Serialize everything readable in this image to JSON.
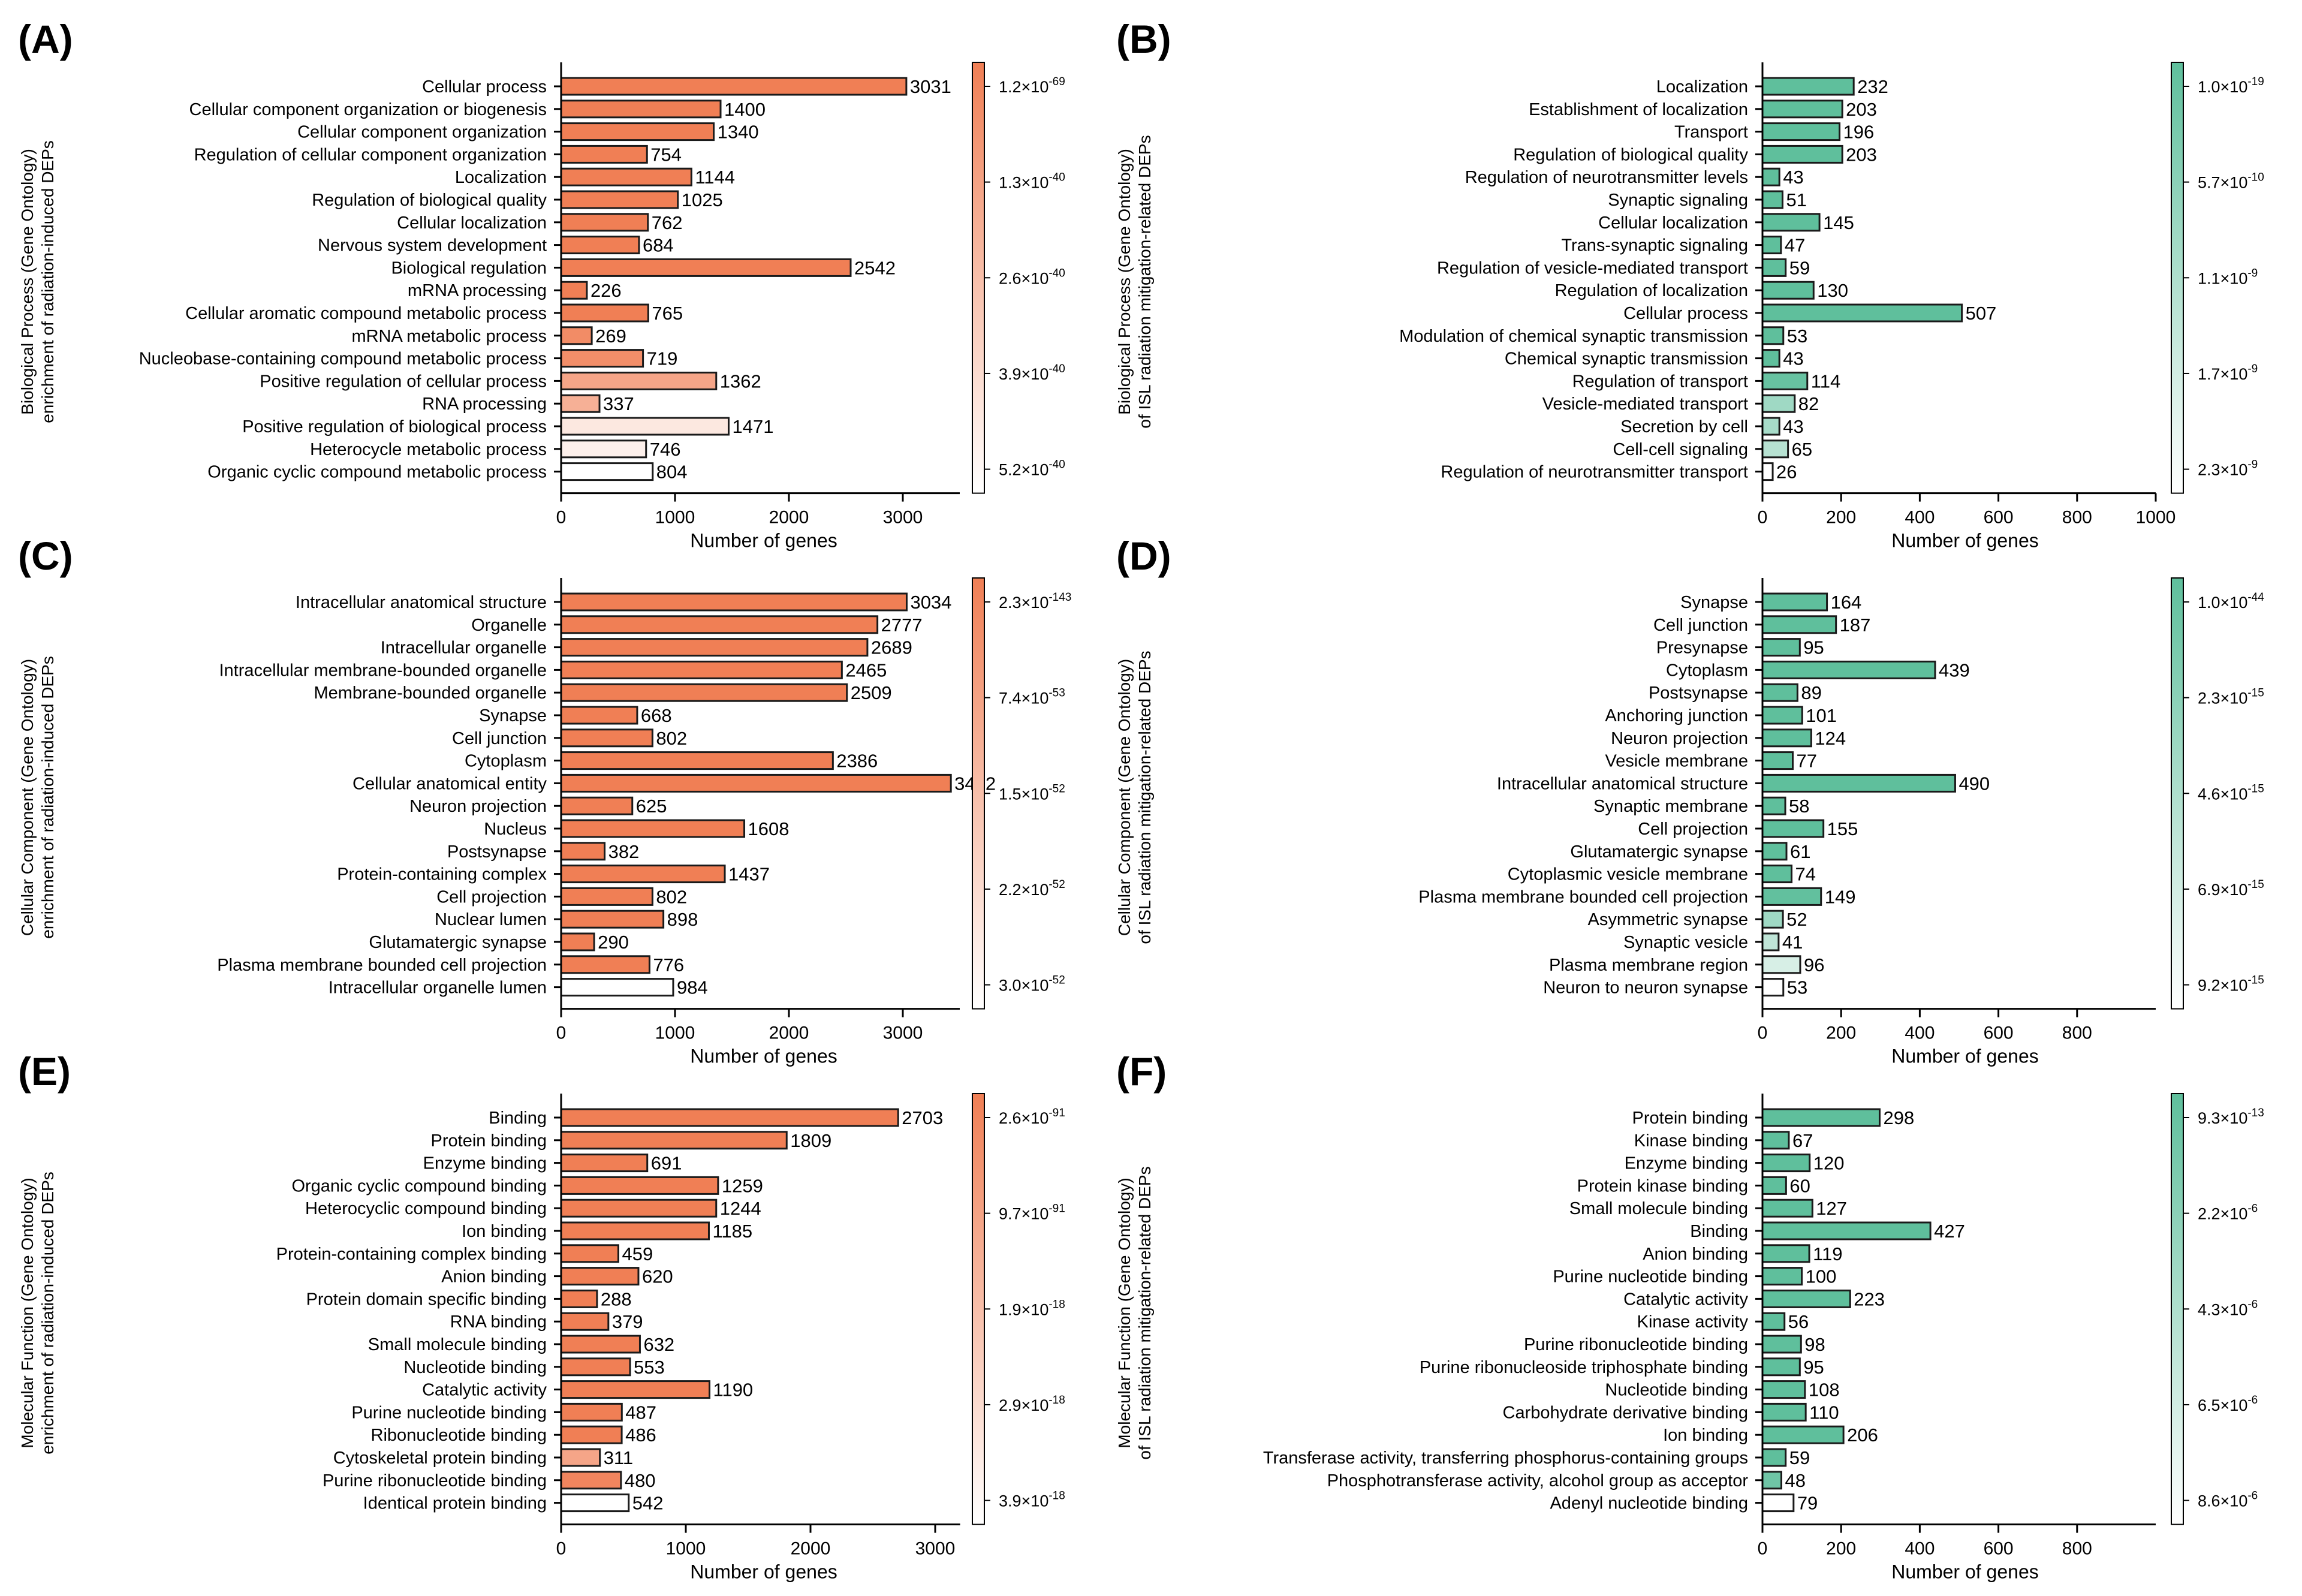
{
  "figure": {
    "x_axis_label": "Number of genes"
  },
  "colors": {
    "orange": "#f07f55",
    "green": "#5fbf9c",
    "light_end": "#ffffff",
    "stroke": "#1a1a1a"
  },
  "chart_data": [
    {
      "panel": "(A)",
      "type": "bar",
      "orientation": "horizontal",
      "palette": "orange",
      "ylabel_lines": [
        "Biological Process (Gene Ontology)",
        "enrichment of radiation-induced DEPs"
      ],
      "xlabel": "Number of genes",
      "xlim": [
        0,
        3500
      ],
      "xticks": [
        0,
        1000,
        2000,
        3000
      ],
      "categories": [
        "Cellular process",
        "Cellular component organization or biogenesis",
        "Cellular component organization",
        "Regulation of cellular component organization",
        "Localization",
        "Regulation of biological quality",
        "Cellular localization",
        "Nervous system development",
        "Biological regulation",
        "mRNA processing",
        "Cellular aromatic compound metabolic process",
        "mRNA metabolic process",
        "Nucleobase-containing compound metabolic process",
        "Positive regulation of cellular process",
        "RNA processing",
        "Positive regulation of biological process",
        "Heterocycle metabolic process",
        "Organic cyclic compound metabolic process"
      ],
      "values": [
        3031,
        1400,
        1340,
        754,
        1144,
        1025,
        762,
        684,
        2542,
        226,
        765,
        269,
        719,
        1362,
        337,
        1471,
        746,
        804
      ],
      "color_levels": [
        0,
        0,
        0,
        0,
        0,
        0,
        0,
        0,
        0,
        0,
        0,
        0.1,
        0.12,
        0.3,
        0.38,
        0.82,
        0.88,
        1.0
      ],
      "colorbar_labels": [
        "1.2×10<sup>-69</sup>",
        "1.3×10<sup>-40</sup>",
        "2.6×10<sup>-40</sup>",
        "3.9×10<sup>-40</sup>",
        "5.2×10<sup>-40</sup>"
      ]
    },
    {
      "panel": "(B)",
      "type": "bar",
      "orientation": "horizontal",
      "palette": "green",
      "ylabel_lines": [
        "Biological Process (Gene Ontology)",
        "of ISL radiation mitigation-related DEPs"
      ],
      "xlabel": "Number of genes",
      "xlim": [
        0,
        1000
      ],
      "xticks": [
        0,
        200,
        400,
        600,
        800,
        1000
      ],
      "categories": [
        "Localization",
        "Establishment of localization",
        "Transport",
        "Regulation of biological quality",
        "Regulation of neurotransmitter levels",
        "Synaptic signaling",
        "Cellular localization",
        "Trans-synaptic signaling",
        "Regulation of vesicle-mediated transport",
        "Regulation of localization",
        "Cellular process",
        "Modulation of chemical synaptic transmission",
        "Chemical synaptic transmission",
        "Regulation of transport",
        "Vesicle-mediated transport",
        "Secretion by cell",
        "Cell-cell signaling",
        "Regulation of neurotransmitter transport"
      ],
      "values": [
        232,
        203,
        196,
        203,
        43,
        51,
        145,
        47,
        59,
        130,
        507,
        53,
        43,
        114,
        82,
        43,
        65,
        26
      ],
      "color_levels": [
        0,
        0,
        0,
        0,
        0,
        0,
        0,
        0,
        0,
        0,
        0,
        0,
        0,
        0.05,
        0.4,
        0.45,
        0.55,
        1.0
      ],
      "colorbar_labels": [
        "1.0×10<sup>-19</sup>",
        "5.7×10<sup>-10</sup>",
        "1.1×10<sup>-9</sup>",
        "1.7×10<sup>-9</sup>",
        "2.3×10<sup>-9</sup>"
      ]
    },
    {
      "panel": "(C)",
      "type": "bar",
      "orientation": "horizontal",
      "palette": "orange",
      "ylabel_lines": [
        "Cellular Component (Gene Ontology)",
        "enrichment of radiation-induced DEPs"
      ],
      "xlabel": "Number of genes",
      "xlim": [
        0,
        3500
      ],
      "xticks": [
        0,
        1000,
        2000,
        3000
      ],
      "categories": [
        "Intracellular anatomical structure",
        "Organelle",
        "Intracellular organelle",
        "Intracellular membrane-bounded organelle",
        "Membrane-bounded organelle",
        "Synapse",
        "Cell junction",
        "Cytoplasm",
        "Cellular anatomical entity",
        "Neuron projection",
        "Nucleus",
        "Postsynapse",
        "Protein-containing complex",
        "Cell projection",
        "Nuclear lumen",
        "Glutamatergic synapse",
        "Plasma membrane bounded cell projection",
        "Intracellular organelle lumen"
      ],
      "values": [
        3034,
        2777,
        2689,
        2465,
        2509,
        668,
        802,
        2386,
        3422,
        625,
        1608,
        382,
        1437,
        802,
        898,
        290,
        776,
        984
      ],
      "color_levels": [
        0,
        0,
        0,
        0,
        0,
        0,
        0,
        0,
        0,
        0,
        0,
        0,
        0,
        0,
        0,
        0,
        0,
        1.0
      ],
      "colorbar_labels": [
        "2.3×10<sup>-143</sup>",
        "7.4×10<sup>-53</sup>",
        "1.5×10<sup>-52</sup>",
        "2.2×10<sup>-52</sup>",
        "3.0×10<sup>-52</sup>"
      ]
    },
    {
      "panel": "(D)",
      "type": "bar",
      "orientation": "horizontal",
      "palette": "green",
      "ylabel_lines": [
        "Cellular Component (Gene Ontology)",
        "of ISL radiation mitigation-related DEPs"
      ],
      "xlabel": "Number of genes",
      "xlim": [
        0,
        1000
      ],
      "xticks": [
        0,
        200,
        400,
        600,
        800
      ],
      "categories": [
        "Synapse",
        "Cell junction",
        "Presynapse",
        "Cytoplasm",
        "Postsynapse",
        "Anchoring junction",
        "Neuron projection",
        "Vesicle membrane",
        "Intracellular anatomical structure",
        "Synaptic membrane",
        "Cell projection",
        "Glutamatergic synapse",
        "Cytoplasmic vesicle membrane",
        "Plasma membrane bounded cell projection",
        "Asymmetric synapse",
        "Synaptic vesicle",
        "Plasma membrane region",
        "Neuron to neuron synapse"
      ],
      "values": [
        164,
        187,
        95,
        439,
        89,
        101,
        124,
        77,
        490,
        58,
        155,
        61,
        74,
        149,
        52,
        41,
        96,
        53
      ],
      "color_levels": [
        0,
        0,
        0,
        0,
        0,
        0,
        0,
        0,
        0,
        0,
        0,
        0,
        0,
        0.02,
        0.4,
        0.6,
        0.75,
        1.0
      ],
      "colorbar_labels": [
        "1.0×10<sup>-44</sup>",
        "2.3×10<sup>-15</sup>",
        "4.6×10<sup>-15</sup>",
        "6.9×10<sup>-15</sup>",
        "9.2×10<sup>-15</sup>"
      ]
    },
    {
      "panel": "(E)",
      "type": "bar",
      "orientation": "horizontal",
      "palette": "orange",
      "ylabel_lines": [
        "Molecular Function (Gene Ontology)",
        "enrichment of radiation-induced DEPs"
      ],
      "xlabel": "Number of genes",
      "xlim": [
        0,
        3200
      ],
      "xticks": [
        0,
        1000,
        2000,
        3000
      ],
      "categories": [
        "Binding",
        "Protein binding",
        "Enzyme binding",
        "Organic cyclic compound binding",
        "Heterocyclic compound binding",
        "Ion binding",
        "Protein-containing complex binding",
        "Anion binding",
        "Protein domain specific binding",
        "RNA binding",
        "Small molecule binding",
        "Nucleotide binding",
        "Catalytic activity",
        "Purine nucleotide binding",
        "Ribonucleotide binding",
        "Cytoskeletal protein binding",
        "Purine ribonucleotide binding",
        "Identical protein binding"
      ],
      "values": [
        2703,
        1809,
        691,
        1259,
        1244,
        1185,
        459,
        620,
        288,
        379,
        632,
        553,
        1190,
        487,
        486,
        311,
        480,
        542
      ],
      "color_levels": [
        0,
        0,
        0,
        0,
        0,
        0,
        0,
        0,
        0,
        0,
        0,
        0,
        0,
        0,
        0,
        0.3,
        0.05,
        1.0
      ],
      "colorbar_labels": [
        "2.6×10<sup>-91</sup>",
        "9.7×10<sup>-91</sup>",
        "1.9×10<sup>-18</sup>",
        "2.9×10<sup>-18</sup>",
        "3.9×10<sup>-18</sup>"
      ]
    },
    {
      "panel": "(F)",
      "type": "bar",
      "orientation": "horizontal",
      "palette": "green",
      "ylabel_lines": [
        "Molecular Function (Gene Ontology)",
        "of ISL radiation mitigation-related DEPs"
      ],
      "xlabel": "Number of genes",
      "xlim": [
        0,
        1000
      ],
      "xticks": [
        0,
        200,
        400,
        600,
        800
      ],
      "categories": [
        "Protein binding",
        "Kinase binding",
        "Enzyme binding",
        "Protein kinase binding",
        "Small molecule binding",
        "Binding",
        "Anion binding",
        "Purine nucleotide binding",
        "Catalytic activity",
        "Kinase activity",
        "Purine ribonucleotide binding",
        "Purine ribonucleoside triphosphate binding",
        "Nucleotide binding",
        "Carbohydrate derivative binding",
        "Ion binding",
        "Transferase activity, transferring phosphorus-containing groups",
        "Phosphotransferase activity, alcohol group as acceptor",
        "Adenyl nucleotide binding"
      ],
      "values": [
        298,
        67,
        120,
        60,
        127,
        427,
        119,
        100,
        223,
        56,
        98,
        95,
        108,
        110,
        206,
        59,
        48,
        79
      ],
      "color_levels": [
        0,
        0,
        0,
        0,
        0,
        0,
        0,
        0,
        0,
        0,
        0,
        0,
        0,
        0,
        0,
        0,
        0.1,
        1.0
      ],
      "colorbar_labels": [
        "9.3×10<sup>-13</sup>",
        "2.2×10<sup>-6</sup>",
        "4.3×10<sup>-6</sup>",
        "6.5×10<sup>-6</sup>",
        "8.6×10<sup>-6</sup>"
      ]
    }
  ]
}
